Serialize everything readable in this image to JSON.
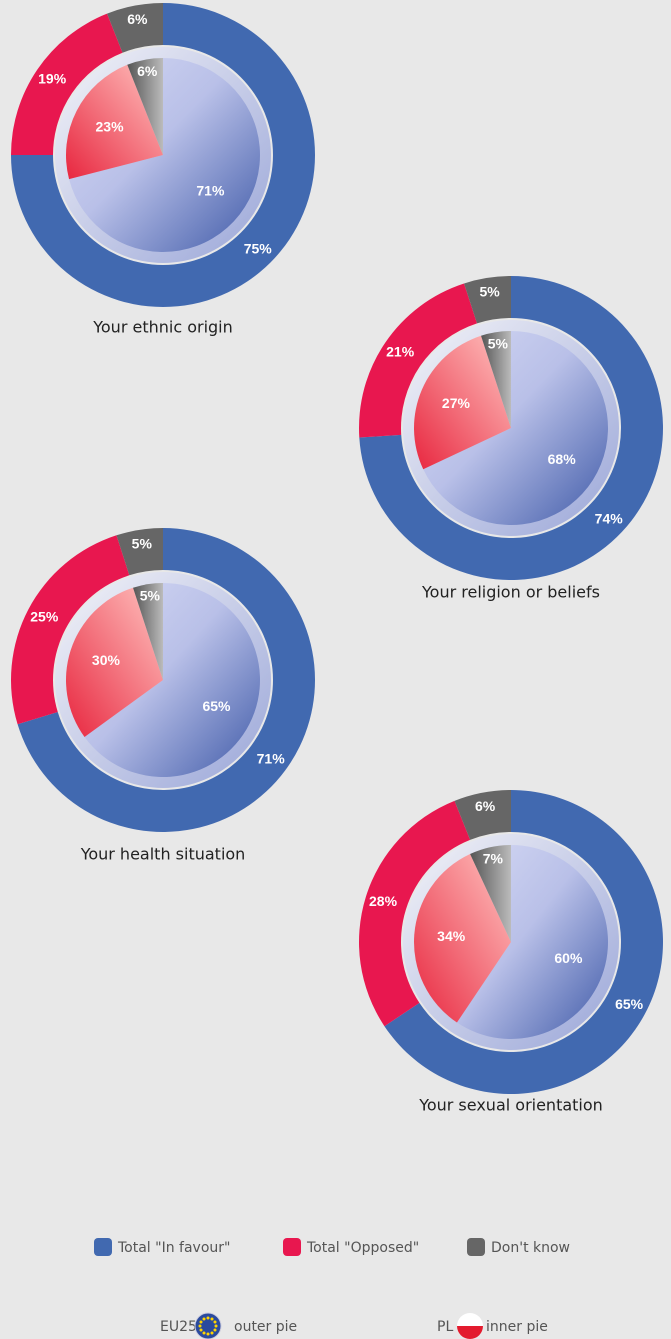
{
  "chart_data": [
    {
      "type": "pie",
      "title": "Your ethnic origin",
      "series": [
        {
          "name": "EU25",
          "values": [
            75,
            19,
            6
          ],
          "value_labels": [
            "75%",
            "19%",
            "6%"
          ]
        },
        {
          "name": "PL",
          "values": [
            71,
            23,
            6
          ],
          "value_labels": [
            "71%",
            "23%",
            "6%"
          ]
        }
      ]
    },
    {
      "type": "pie",
      "title": "Your religion or beliefs",
      "series": [
        {
          "name": "EU25",
          "values": [
            74,
            21,
            5
          ],
          "value_labels": [
            "74%",
            "21%",
            "5%"
          ]
        },
        {
          "name": "PL",
          "values": [
            68,
            27,
            5
          ],
          "value_labels": [
            "68%",
            "27%",
            "5%"
          ]
        }
      ]
    },
    {
      "type": "pie",
      "title": "Your health situation",
      "series": [
        {
          "name": "EU25",
          "values": [
            71,
            25,
            5
          ],
          "value_labels": [
            "71%",
            "25%",
            "5%"
          ]
        },
        {
          "name": "PL",
          "values": [
            65,
            30,
            5
          ],
          "value_labels": [
            "65%",
            "30%",
            "5%"
          ]
        }
      ]
    },
    {
      "type": "pie",
      "title": "Your sexual orientation",
      "series": [
        {
          "name": "EU25",
          "values": [
            65,
            28,
            6
          ],
          "value_labels": [
            "65%",
            "28%",
            "6%"
          ]
        },
        {
          "name": "PL",
          "values": [
            60,
            34,
            7
          ],
          "value_labels": [
            "60%",
            "34%",
            "7%"
          ]
        }
      ]
    }
  ],
  "legend": {
    "categories": [
      "Total \"In favour\"",
      "Total \"Opposed\"",
      "Don't know"
    ],
    "colors": [
      "#4169b0",
      "#e8174f",
      "#666666"
    ],
    "rings": [
      {
        "name": "EU25",
        "label": "outer pie"
      },
      {
        "name": "PL",
        "label": "inner pie"
      }
    ]
  }
}
